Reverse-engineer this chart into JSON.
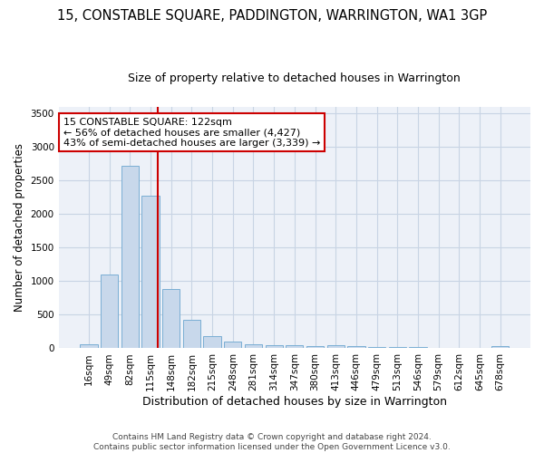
{
  "title": "15, CONSTABLE SQUARE, PADDINGTON, WARRINGTON, WA1 3GP",
  "subtitle": "Size of property relative to detached houses in Warrington",
  "xlabel": "Distribution of detached houses by size in Warrington",
  "ylabel": "Number of detached properties",
  "bins": [
    "16sqm",
    "49sqm",
    "82sqm",
    "115sqm",
    "148sqm",
    "182sqm",
    "215sqm",
    "248sqm",
    "281sqm",
    "314sqm",
    "347sqm",
    "380sqm",
    "413sqm",
    "446sqm",
    "479sqm",
    "513sqm",
    "546sqm",
    "579sqm",
    "612sqm",
    "645sqm",
    "678sqm"
  ],
  "values": [
    55,
    1100,
    2720,
    2280,
    880,
    430,
    175,
    100,
    65,
    50,
    40,
    35,
    50,
    30,
    25,
    20,
    15,
    10,
    5,
    3,
    30
  ],
  "bar_color": "#c8d8eb",
  "bar_edge_color": "#7aaed4",
  "grid_color": "#c8d4e4",
  "background_color": "#edf1f8",
  "red_line_index": 3,
  "annotation_text": "15 CONSTABLE SQUARE: 122sqm\n← 56% of detached houses are smaller (4,427)\n43% of semi-detached houses are larger (3,339) →",
  "annotation_box_color": "#ffffff",
  "annotation_box_edge": "#cc0000",
  "footer_line1": "Contains HM Land Registry data © Crown copyright and database right 2024.",
  "footer_line2": "Contains public sector information licensed under the Open Government Licence v3.0.",
  "ylim": [
    0,
    3600
  ],
  "yticks": [
    0,
    500,
    1000,
    1500,
    2000,
    2500,
    3000,
    3500
  ],
  "title_fontsize": 10.5,
  "subtitle_fontsize": 9,
  "ylabel_fontsize": 8.5,
  "xlabel_fontsize": 9,
  "tick_fontsize": 7.5,
  "footer_fontsize": 6.5,
  "annot_fontsize": 8
}
